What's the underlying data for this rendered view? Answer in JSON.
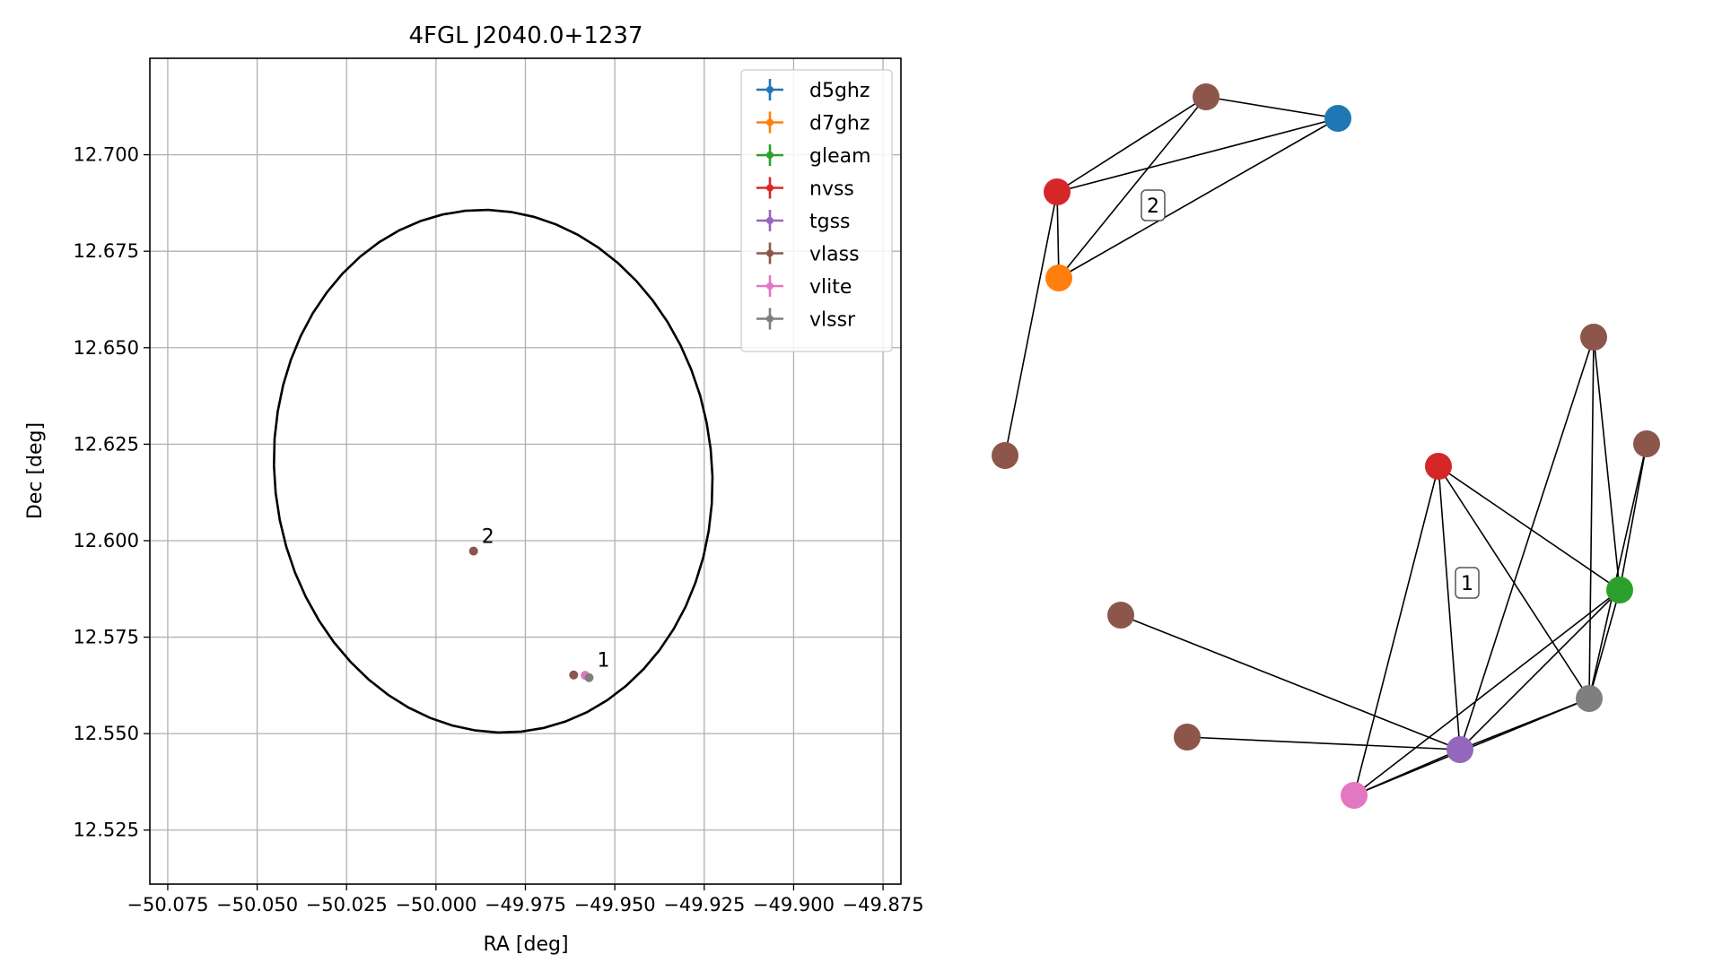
{
  "chart_data": [
    {
      "type": "scatter",
      "title": "4FGL J2040.0+1237",
      "xlabel": "RA [deg]",
      "ylabel": "Dec [deg]",
      "xlim": [
        -50.08,
        -49.87
      ],
      "ylim": [
        12.511,
        12.725
      ],
      "x_inverted": false,
      "grid": true,
      "legend_position": "upper right",
      "x_ticks": [
        -50.075,
        -50.05,
        -50.025,
        -50.0,
        -49.975,
        -49.95,
        -49.925,
        -49.9,
        -49.875
      ],
      "x_tick_labels": [
        "−50.075",
        "−50.050",
        "−50.025",
        "−50.000",
        "−49.975",
        "−49.950",
        "−49.925",
        "−49.900",
        "−49.875"
      ],
      "y_ticks": [
        12.525,
        12.55,
        12.575,
        12.6,
        12.625,
        12.65,
        12.675,
        12.7
      ],
      "y_tick_labels": [
        "12.525",
        "12.550",
        "12.575",
        "12.600",
        "12.625",
        "12.650",
        "12.675",
        "12.700"
      ],
      "ellipse": {
        "center": [
          -49.984,
          12.618
        ],
        "semi_axis_ra": 0.061,
        "semi_axis_dec": 0.068,
        "angle_deg": 12,
        "color": "#000000"
      },
      "series": [
        {
          "name": "d5ghz",
          "color": "#1f77b4",
          "points": []
        },
        {
          "name": "d7ghz",
          "color": "#ff7f0e",
          "points": []
        },
        {
          "name": "gleam",
          "color": "#2ca02c",
          "points": []
        },
        {
          "name": "nvss",
          "color": "#d62728",
          "points": []
        },
        {
          "name": "tgss",
          "color": "#9467bd",
          "points": []
        },
        {
          "name": "vlass",
          "color": "#8c564b",
          "points": [
            {
              "x": -49.9895,
              "y": 12.5973
            },
            {
              "x": -49.9615,
              "y": 12.5652
            }
          ]
        },
        {
          "name": "vlite",
          "color": "#e377c2",
          "points": [
            {
              "x": -49.9583,
              "y": 12.5651
            }
          ]
        },
        {
          "name": "vlssr",
          "color": "#7f7f7f",
          "points": [
            {
              "x": -49.9572,
              "y": 12.5645
            }
          ]
        }
      ],
      "annotations": [
        {
          "text": "2",
          "x": -49.9895,
          "y": 12.5973
        },
        {
          "text": "1",
          "x": -49.9572,
          "y": 12.5652
        }
      ]
    },
    {
      "type": "network",
      "nodes": [
        {
          "id": "a_vlass",
          "color": "#8c564b"
        },
        {
          "id": "a_d5ghz",
          "color": "#1f77b4"
        },
        {
          "id": "a_nvss",
          "color": "#d62728"
        },
        {
          "id": "a_d7ghz",
          "color": "#ff7f0e"
        },
        {
          "id": "a_vlass2",
          "color": "#8c564b"
        },
        {
          "id": "b_vlass1",
          "color": "#8c564b"
        },
        {
          "id": "b_vlass2",
          "color": "#8c564b"
        },
        {
          "id": "b_nvss",
          "color": "#d62728"
        },
        {
          "id": "b_gleam",
          "color": "#2ca02c"
        },
        {
          "id": "b_vlass3",
          "color": "#8c564b"
        },
        {
          "id": "b_vlssr",
          "color": "#7f7f7f"
        },
        {
          "id": "b_vlass4",
          "color": "#8c564b"
        },
        {
          "id": "b_tgss",
          "color": "#9467bd"
        },
        {
          "id": "b_vlite",
          "color": "#e377c2"
        }
      ],
      "edges": [
        [
          "a_nvss",
          "a_vlass"
        ],
        [
          "a_nvss",
          "a_d5ghz"
        ],
        [
          "a_nvss",
          "a_d7ghz"
        ],
        [
          "a_nvss",
          "a_vlass2"
        ],
        [
          "a_vlass",
          "a_d5ghz"
        ],
        [
          "a_vlass",
          "a_d7ghz"
        ],
        [
          "a_d7ghz",
          "a_d5ghz"
        ],
        [
          "b_nvss",
          "b_tgss"
        ],
        [
          "b_nvss",
          "b_vlite"
        ],
        [
          "b_nvss",
          "b_gleam"
        ],
        [
          "b_nvss",
          "b_vlssr"
        ],
        [
          "b_vlass1",
          "b_gleam"
        ],
        [
          "b_vlass1",
          "b_vlssr"
        ],
        [
          "b_vlass1",
          "b_tgss"
        ],
        [
          "b_vlass2",
          "b_gleam"
        ],
        [
          "b_vlass2",
          "b_vlssr"
        ],
        [
          "b_vlass3",
          "b_tgss"
        ],
        [
          "b_vlass4",
          "b_tgss"
        ],
        [
          "b_gleam",
          "b_tgss"
        ],
        [
          "b_gleam",
          "b_vlite"
        ],
        [
          "b_gleam",
          "b_vlssr"
        ],
        [
          "b_vlssr",
          "b_tgss"
        ],
        [
          "b_vlssr",
          "b_vlite"
        ],
        [
          "b_tgss",
          "b_vlite"
        ]
      ],
      "group_labels": [
        {
          "text": "2",
          "group": "a"
        },
        {
          "text": "1",
          "group": "b"
        }
      ]
    }
  ]
}
